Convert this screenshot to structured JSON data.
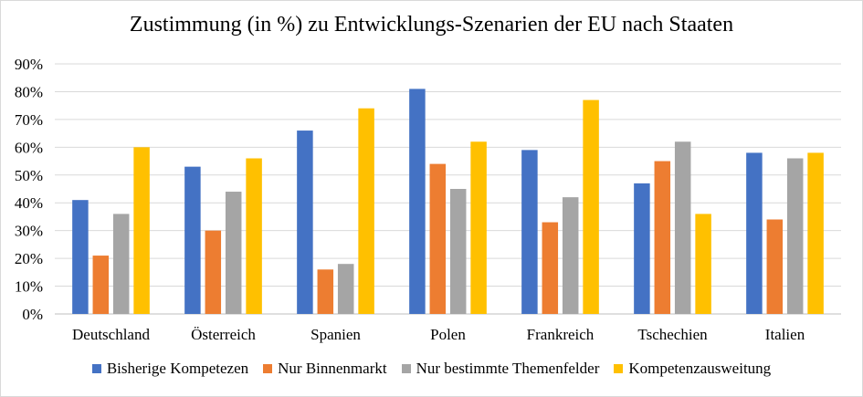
{
  "chart_data": {
    "type": "bar",
    "title": "Zustimmung (in %) zu Entwicklungs-Szenarien der EU nach Staaten",
    "xlabel": "",
    "ylabel": "",
    "ylim": [
      0,
      90
    ],
    "y_ticks": [
      "0%",
      "10%",
      "20%",
      "30%",
      "40%",
      "50%",
      "60%",
      "70%",
      "80%",
      "90%"
    ],
    "grid": true,
    "legend_position": "bottom",
    "categories": [
      "Deutschland",
      "Österreich",
      "Spanien",
      "Polen",
      "Frankreich",
      "Tschechien",
      "Italien"
    ],
    "series": [
      {
        "name": "Bisherige Kompetezen",
        "color": "#4472c4",
        "values": [
          41,
          53,
          66,
          81,
          59,
          47,
          58
        ]
      },
      {
        "name": "Nur Binnenmarkt",
        "color": "#ed7d31",
        "values": [
          21,
          30,
          16,
          54,
          33,
          55,
          34
        ]
      },
      {
        "name": "Nur bestimmte Themenfelder",
        "color": "#a5a5a5",
        "values": [
          36,
          44,
          18,
          45,
          42,
          62,
          56
        ]
      },
      {
        "name": "Kompetenzausweitung",
        "color": "#ffc000",
        "values": [
          60,
          56,
          74,
          62,
          77,
          36,
          58
        ]
      }
    ]
  }
}
